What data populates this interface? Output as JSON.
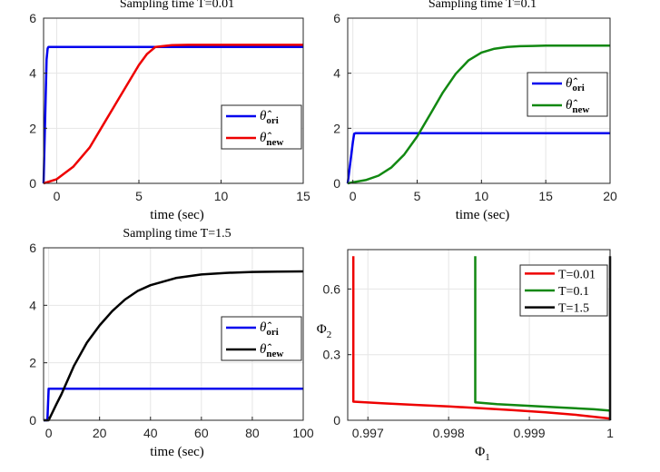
{
  "colors": {
    "blue": "#0000ee",
    "red": "#ee0000",
    "green": "#118811",
    "black": "#000000"
  },
  "chart_data": [
    {
      "type": "line",
      "title": "Sampling time T=0.01",
      "xlabel": "time (sec)",
      "ylabel": "",
      "xlim": [
        -0.8,
        15
      ],
      "ylim": [
        0,
        6
      ],
      "xticks": [
        0,
        5,
        10,
        15
      ],
      "yticks": [
        0,
        2,
        4,
        6
      ],
      "legend_position": "right",
      "series": [
        {
          "name": "theta-ori",
          "legend_base": "θ̂",
          "legend_sub": "ori",
          "color_key": "blue",
          "x": [
            -0.8,
            -0.62,
            -0.55,
            -0.5,
            -0.45,
            15
          ],
          "y": [
            0,
            4.5,
            4.9,
            4.95,
            4.95,
            4.95
          ]
        },
        {
          "name": "theta-new",
          "legend_base": "θ̂",
          "legend_sub": "new",
          "color_key": "red",
          "x": [
            -0.8,
            0,
            1,
            2,
            3,
            4,
            5,
            5.5,
            6,
            7,
            8,
            10,
            15
          ],
          "y": [
            0,
            0.15,
            0.6,
            1.3,
            2.3,
            3.3,
            4.3,
            4.7,
            4.95,
            5.02,
            5.03,
            5.03,
            5.03
          ]
        }
      ]
    },
    {
      "type": "line",
      "title": "Sampling time T=0.1",
      "xlabel": "time (sec)",
      "ylabel": "",
      "xlim": [
        -0.4,
        20
      ],
      "ylim": [
        0,
        6
      ],
      "xticks": [
        0,
        5,
        10,
        15,
        20
      ],
      "yticks": [
        0,
        2,
        4,
        6
      ],
      "legend_position": "right",
      "series": [
        {
          "name": "theta-ori",
          "legend_base": "θ̂",
          "legend_sub": "ori",
          "color_key": "blue",
          "x": [
            -0.4,
            0,
            0.1,
            0.2,
            20
          ],
          "y": [
            0,
            1.5,
            1.8,
            1.82,
            1.82
          ]
        },
        {
          "name": "theta-new",
          "legend_base": "θ̂",
          "legend_sub": "new",
          "color_key": "green",
          "x": [
            -0.4,
            0,
            1,
            2,
            3,
            4,
            5,
            6,
            7,
            8,
            9,
            10,
            11,
            12,
            13,
            14,
            15,
            17,
            20
          ],
          "y": [
            0,
            0.04,
            0.12,
            0.28,
            0.58,
            1.05,
            1.7,
            2.5,
            3.3,
            3.98,
            4.47,
            4.75,
            4.89,
            4.95,
            4.98,
            4.99,
            5.0,
            5.0,
            5.0
          ]
        }
      ]
    },
    {
      "type": "line",
      "title": "Sampling time T=1.5",
      "xlabel": "time (sec)",
      "ylabel": "",
      "xlim": [
        -2,
        100
      ],
      "ylim": [
        0,
        6
      ],
      "xticks": [
        0,
        20,
        40,
        60,
        80,
        100
      ],
      "yticks": [
        0,
        2,
        4,
        6
      ],
      "legend_position": "right",
      "series": [
        {
          "name": "theta-ori",
          "legend_base": "θ̂",
          "legend_sub": "ori",
          "color_key": "blue",
          "x": [
            -2,
            -0.5,
            0,
            1,
            100
          ],
          "y": [
            0,
            0,
            1.1,
            1.1,
            1.1
          ]
        },
        {
          "name": "theta-new",
          "legend_base": "θ̂",
          "legend_sub": "new",
          "color_key": "black",
          "x": [
            -2,
            0,
            3,
            5,
            10,
            15,
            20,
            25,
            30,
            35,
            40,
            50,
            60,
            70,
            80,
            90,
            100
          ],
          "y": [
            0,
            0,
            0.55,
            0.9,
            1.9,
            2.7,
            3.3,
            3.8,
            4.2,
            4.5,
            4.7,
            4.95,
            5.07,
            5.13,
            5.16,
            5.17,
            5.18
          ]
        }
      ]
    },
    {
      "type": "line",
      "title": "",
      "xlabel": "Φ",
      "xlabel_sub": "1",
      "ylabel": "Φ",
      "ylabel_sub": "2",
      "xlim": [
        0.99675,
        1.0
      ],
      "ylim": [
        0,
        0.78
      ],
      "xticks": [
        0.997,
        0.998,
        0.999,
        1.0
      ],
      "xtick_labels": [
        "0.997",
        "0.998",
        "0.999",
        "1"
      ],
      "yticks": [
        0,
        0.3,
        0.6
      ],
      "ytick_labels": [
        "0",
        "0.3",
        "0.6"
      ],
      "legend_position": "top-right",
      "series": [
        {
          "name": "T=0.01",
          "color_key": "red",
          "x": [
            0.99682,
            0.99682,
            0.9972,
            0.9976,
            0.998,
            0.9984,
            0.9988,
            0.9992,
            0.9996,
            1.0
          ],
          "y": [
            0.75,
            0.085,
            0.077,
            0.07,
            0.063,
            0.055,
            0.046,
            0.036,
            0.024,
            0.008
          ]
        },
        {
          "name": "T=0.1",
          "color_key": "green",
          "x": [
            0.99833,
            0.99833,
            0.9986,
            0.999,
            0.9994,
            0.9998,
            1.0
          ],
          "y": [
            0.75,
            0.082,
            0.074,
            0.066,
            0.058,
            0.05,
            0.044
          ]
        },
        {
          "name": "T=1.5",
          "color_key": "black",
          "x": [
            1.0,
            1.0
          ],
          "y": [
            0.75,
            0.0
          ]
        }
      ]
    }
  ]
}
